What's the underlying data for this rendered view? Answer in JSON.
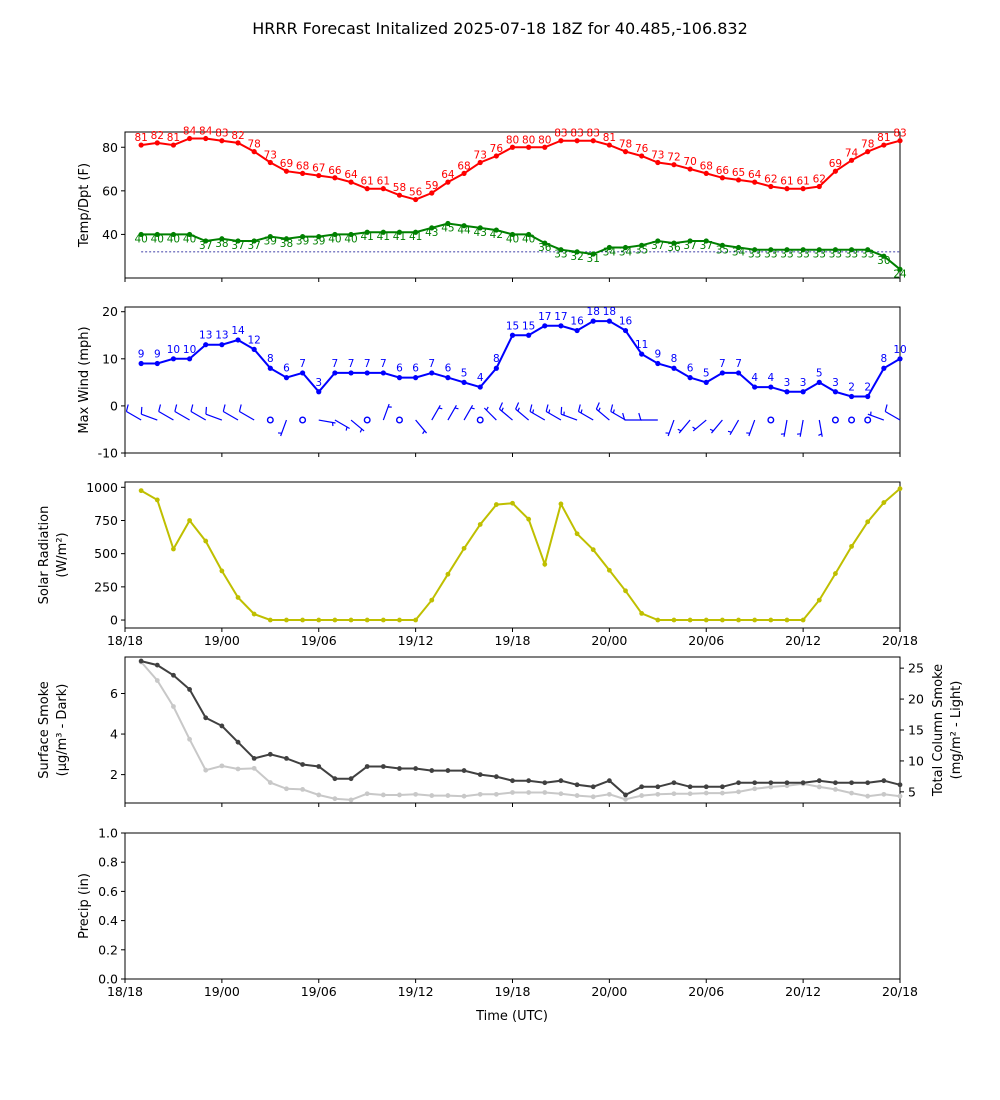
{
  "title": "HRRR Forecast Initalized 2025-07-18 18Z for 40.485,-106.832",
  "xlabel": "Time (UTC)",
  "x_ticks": [
    "18/18",
    "19/00",
    "19/06",
    "19/12",
    "19/18",
    "20/00",
    "20/06",
    "20/12",
    "20/18"
  ],
  "x_range_hours": [
    0,
    48
  ],
  "colors": {
    "temp": "#ff0000",
    "dewpoint": "#008000",
    "wind": "#0000ff",
    "solar": "#bfbf00",
    "smoke_surface": "#404040",
    "smoke_column": "#c8c8c8",
    "freezing_line": "#00008b"
  },
  "chart_data": [
    {
      "type": "line",
      "ylabel": "Temp/Dpt (F)",
      "ylim": [
        20,
        87
      ],
      "yticks": [
        40,
        60,
        80
      ],
      "x_hours": [
        1,
        2,
        3,
        4,
        5,
        6,
        7,
        8,
        9,
        10,
        11,
        12,
        13,
        14,
        15,
        16,
        17,
        18,
        19,
        20,
        21,
        22,
        23,
        24,
        25,
        26,
        27,
        28,
        29,
        30,
        31,
        32,
        33,
        34,
        35,
        36,
        37,
        38,
        39,
        40,
        41,
        42,
        43,
        44,
        45,
        46,
        47,
        48
      ],
      "series": [
        {
          "key": "temperature",
          "values": [
            81,
            82,
            81,
            84,
            84,
            83,
            82,
            78,
            73,
            69,
            68,
            67,
            66,
            64,
            61,
            61,
            58,
            56,
            59,
            64,
            68,
            73,
            76,
            80,
            80,
            80,
            83,
            83,
            83,
            81,
            78,
            76,
            73,
            72,
            70,
            68,
            66,
            65,
            64,
            62,
            61,
            61,
            62,
            69,
            74,
            78,
            81,
            83
          ]
        },
        {
          "key": "dewpoint",
          "values": [
            40,
            40,
            40,
            40,
            37,
            38,
            37,
            37,
            39,
            38,
            39,
            39,
            40,
            40,
            41,
            41,
            41,
            41,
            43,
            45,
            44,
            43,
            42,
            40,
            40,
            36,
            33,
            32,
            31,
            34,
            34,
            35,
            37,
            36,
            37,
            37,
            35,
            34,
            33,
            33,
            33,
            33,
            33,
            33,
            33,
            33,
            30,
            24
          ]
        }
      ],
      "reference_line": 32
    },
    {
      "type": "line",
      "ylabel": "Max Wind (mph)",
      "ylim": [
        -10,
        21
      ],
      "yticks": [
        -10,
        0,
        10,
        20
      ],
      "x_hours": [
        1,
        2,
        3,
        4,
        5,
        6,
        7,
        8,
        9,
        10,
        11,
        12,
        13,
        14,
        15,
        16,
        17,
        18,
        19,
        20,
        21,
        22,
        23,
        24,
        25,
        26,
        27,
        28,
        29,
        30,
        31,
        32,
        33,
        34,
        35,
        36,
        37,
        38,
        39,
        40,
        41,
        42,
        43,
        44,
        45,
        46,
        47,
        48
      ],
      "series": [
        {
          "key": "max_wind",
          "values": [
            9,
            9,
            10,
            10,
            13,
            13,
            14,
            12,
            8,
            6,
            7,
            3,
            7,
            7,
            7,
            7,
            6,
            6,
            7,
            6,
            5,
            4,
            8,
            15,
            15,
            17,
            17,
            16,
            18,
            18,
            16,
            11,
            9,
            8,
            6,
            5,
            7,
            7,
            4,
            4,
            3,
            3,
            5,
            3,
            2,
            2,
            8,
            10
          ]
        }
      ],
      "barb_row_y": -3,
      "barb_directions_deg": [
        300,
        290,
        300,
        300,
        300,
        290,
        300,
        300,
        0,
        200,
        0,
        100,
        120,
        130,
        0,
        20,
        0,
        140,
        30,
        30,
        30,
        0,
        315,
        310,
        310,
        300,
        300,
        290,
        300,
        310,
        300,
        270,
        270,
        200,
        220,
        230,
        220,
        210,
        200,
        0,
        190,
        190,
        170,
        0,
        0,
        0,
        290,
        300
      ],
      "barb_speeds_kt": [
        8,
        8,
        9,
        9,
        11,
        11,
        12,
        10,
        0,
        5,
        0,
        3,
        6,
        6,
        0,
        6,
        0,
        5,
        6,
        5,
        4,
        0,
        7,
        13,
        13,
        15,
        15,
        14,
        16,
        16,
        14,
        10,
        8,
        7,
        5,
        4,
        6,
        6,
        4,
        0,
        3,
        3,
        4,
        0,
        0,
        0,
        7,
        9
      ]
    },
    {
      "type": "line",
      "ylabel": "Solar Radiation",
      "ylabel2": "(W/m²)",
      "ylim": [
        -60,
        1040
      ],
      "yticks": [
        0,
        250,
        500,
        750,
        1000
      ],
      "x_hours": [
        1,
        2,
        3,
        4,
        5,
        6,
        7,
        8,
        9,
        10,
        11,
        12,
        13,
        14,
        15,
        16,
        17,
        18,
        19,
        20,
        21,
        22,
        23,
        24,
        25,
        26,
        27,
        28,
        29,
        30,
        31,
        32,
        33,
        34,
        35,
        36,
        37,
        38,
        39,
        40,
        41,
        42,
        43,
        44,
        45,
        46,
        47,
        48
      ],
      "series": [
        {
          "key": "solar",
          "values": [
            975,
            905,
            535,
            750,
            595,
            370,
            170,
            45,
            0,
            0,
            0,
            0,
            0,
            0,
            0,
            0,
            0,
            0,
            150,
            345,
            540,
            720,
            870,
            880,
            760,
            420,
            875,
            650,
            530,
            375,
            220,
            50,
            0,
            0,
            0,
            0,
            0,
            0,
            0,
            0,
            0,
            0,
            150,
            350,
            555,
            740,
            885,
            990
          ]
        }
      ]
    },
    {
      "type": "line",
      "ylabel": "Surface Smoke",
      "ylabel2": "(μg/m³ - Dark)",
      "y2label": "Total Column Smoke",
      "y2label2": "(mg/m² - Light)",
      "ylim": [
        0.6,
        7.8
      ],
      "yticks": [
        2,
        4,
        6
      ],
      "y2lim": [
        3.2,
        26.8
      ],
      "y2ticks": [
        5,
        10,
        15,
        20,
        25
      ],
      "x_hours": [
        1,
        2,
        3,
        4,
        5,
        6,
        7,
        8,
        9,
        10,
        11,
        12,
        13,
        14,
        15,
        16,
        17,
        18,
        19,
        20,
        21,
        22,
        23,
        24,
        25,
        26,
        27,
        28,
        29,
        30,
        31,
        32,
        33,
        34,
        35,
        36,
        37,
        38,
        39,
        40,
        41,
        42,
        43,
        44,
        45,
        46,
        47,
        48
      ],
      "series": [
        {
          "key": "surface_smoke",
          "axis": "left",
          "values": [
            7.6,
            7.4,
            6.9,
            6.2,
            4.8,
            4.4,
            3.6,
            2.8,
            3.0,
            2.8,
            2.5,
            2.4,
            1.8,
            1.8,
            2.4,
            2.4,
            2.3,
            2.3,
            2.2,
            2.2,
            2.2,
            2.0,
            1.9,
            1.7,
            1.7,
            1.6,
            1.7,
            1.5,
            1.4,
            1.7,
            1.0,
            1.4,
            1.4,
            1.6,
            1.4,
            1.4,
            1.4,
            1.6,
            1.6,
            1.6,
            1.6,
            1.6,
            1.7,
            1.6,
            1.6,
            1.6,
            1.7,
            1.5
          ]
        },
        {
          "key": "total_column_smoke",
          "axis": "right",
          "values": [
            26.0,
            23.0,
            18.8,
            13.5,
            8.5,
            9.2,
            8.7,
            8.8,
            6.5,
            5.5,
            5.4,
            4.5,
            3.9,
            3.7,
            4.7,
            4.5,
            4.5,
            4.6,
            4.4,
            4.4,
            4.3,
            4.6,
            4.6,
            4.9,
            4.9,
            4.9,
            4.7,
            4.4,
            4.2,
            4.6,
            3.8,
            4.4,
            4.6,
            4.7,
            4.7,
            4.8,
            4.8,
            5.0,
            5.5,
            5.8,
            6.0,
            6.3,
            5.8,
            5.4,
            4.8,
            4.3,
            4.6,
            4.3
          ]
        }
      ]
    },
    {
      "type": "line",
      "ylabel": "Precip (in)",
      "ylim": [
        0,
        1
      ],
      "yticks": [
        "0.0",
        "0.2",
        "0.4",
        "0.6",
        "0.8",
        "1.0"
      ],
      "series": []
    }
  ]
}
